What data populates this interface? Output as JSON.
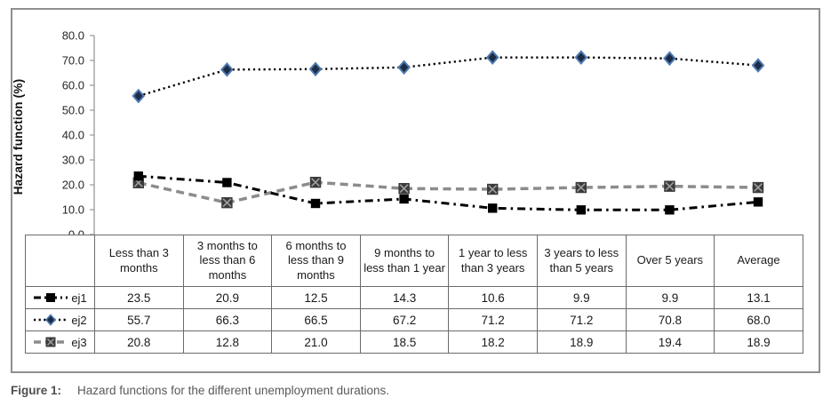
{
  "figure": {
    "caption_label": "Figure 1:",
    "caption_text": "Hazard functions for the different unemployment durations."
  },
  "chart_data": {
    "type": "line",
    "title": "",
    "xlabel": "",
    "ylabel": "Hazard function (%)",
    "ylim": [
      0,
      80
    ],
    "ytick_step": 10,
    "ytick_labels": [
      "80.0",
      "70.0",
      "60.0",
      "50.0",
      "40.0",
      "30.0",
      "20.0",
      "10.0",
      "0.0"
    ],
    "grid": false,
    "legend_position": "table-left-column",
    "categories": [
      "Less than 3 months",
      "3 months to less than 6 months",
      "6 months to less than 9 months",
      "9 months to less than 1 year",
      "1 year to less than 3 years",
      "3 years to less than 5 years",
      "Over 5 years",
      "Average"
    ],
    "series": [
      {
        "name": "ej1",
        "line_style": "dash-dot",
        "marker": "square",
        "color": "#000000",
        "marker_color": "#000000",
        "values": [
          23.5,
          20.9,
          12.5,
          14.3,
          10.6,
          9.9,
          9.9,
          13.1
        ]
      },
      {
        "name": "ej2",
        "line_style": "dotted",
        "marker": "diamond",
        "color": "#000000",
        "marker_color": "#1d2c47",
        "marker_edge_color": "#4e7ab0",
        "values": [
          55.7,
          66.3,
          66.5,
          67.2,
          71.2,
          71.2,
          70.8,
          68.0
        ]
      },
      {
        "name": "ej3",
        "line_style": "dashed",
        "marker": "x-square",
        "color": "#8c8c8c",
        "marker_color": "#3b3b3b",
        "marker_edge_color": "#9f9f9f",
        "values": [
          20.8,
          12.8,
          21.0,
          18.5,
          18.2,
          18.9,
          19.4,
          18.9
        ]
      }
    ]
  },
  "table": {
    "display_values": [
      [
        "23.5",
        "20.9",
        "12.5",
        "14.3",
        "10.6",
        "9.9",
        "9.9",
        "13.1"
      ],
      [
        "55.7",
        "66.3",
        "66.5",
        "67.2",
        "71.2",
        "71.2",
        "70.8",
        "68.0"
      ],
      [
        "20.8",
        "12.8",
        "21.0",
        "18.5",
        "18.2",
        "18.9",
        "19.4",
        "18.9"
      ]
    ]
  },
  "colors": {
    "frame_border": "#8f8f8f",
    "axis": "#999999",
    "table_border": "#6b6b6b",
    "text": "#1a1a1a",
    "caption": "#58595b",
    "ej2_marker_blue": "#4e7ab0",
    "ej3_gray": "#8c8c8c"
  }
}
